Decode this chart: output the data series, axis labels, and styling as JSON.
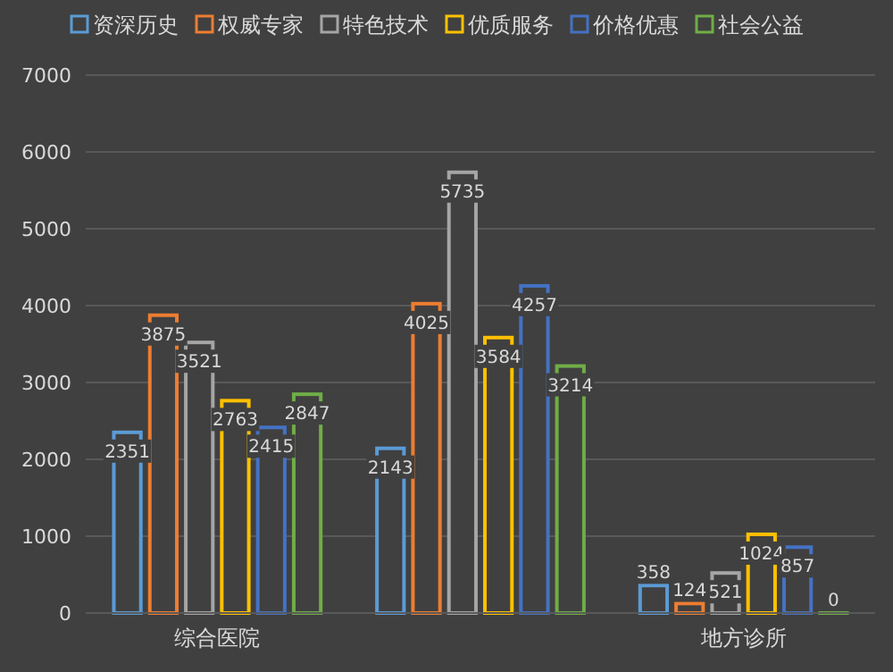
{
  "chart_data": {
    "type": "bar",
    "categories": [
      "综合医院",
      null,
      "地方诊所"
    ],
    "series": [
      {
        "name": "资深历史",
        "color": "#5b9bd5",
        "values": [
          2351,
          2143,
          358
        ]
      },
      {
        "name": "权威专家",
        "color": "#ed7d31",
        "values": [
          3875,
          4025,
          124
        ]
      },
      {
        "name": "特色技术",
        "color": "#a5a5a5",
        "values": [
          3521,
          5735,
          521
        ]
      },
      {
        "name": "优质服务",
        "color": "#ffc000",
        "values": [
          2763,
          3584,
          1024
        ]
      },
      {
        "name": "价格优惠",
        "color": "#4472c4",
        "values": [
          2415,
          4257,
          857
        ]
      },
      {
        "name": "社会公益",
        "color": "#70ad47",
        "values": [
          2847,
          3214,
          0
        ]
      }
    ],
    "ylim": [
      0,
      7000
    ],
    "yticks": [
      0,
      1000,
      2000,
      3000,
      4000,
      5000,
      6000,
      7000
    ],
    "grid": "y",
    "legend": "top",
    "data_labels": true
  }
}
